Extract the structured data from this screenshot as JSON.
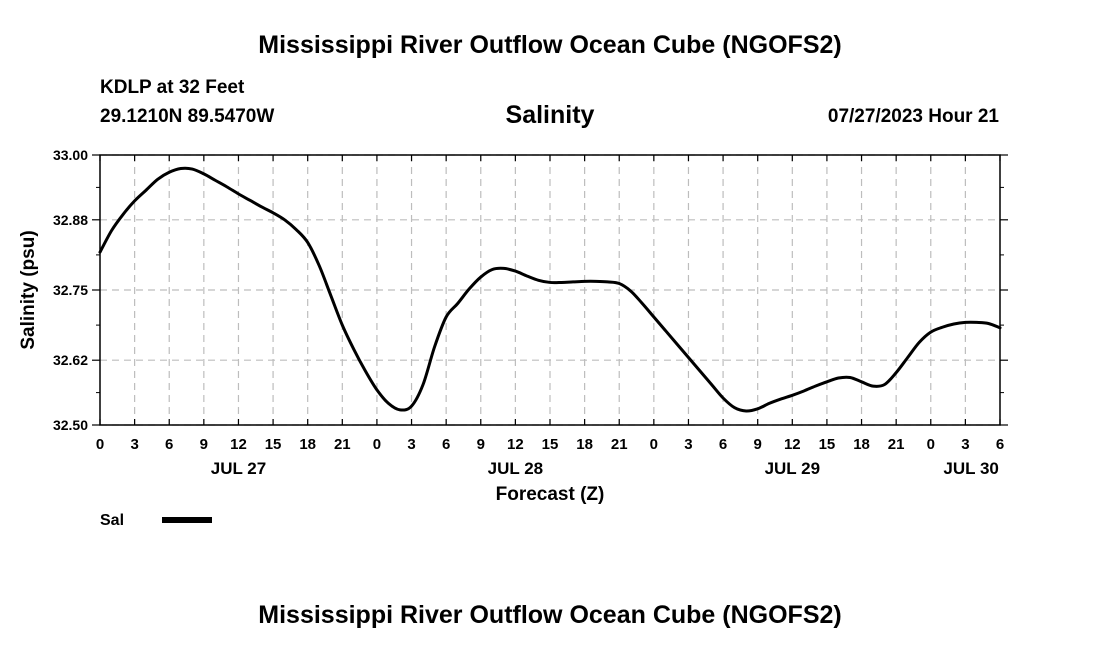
{
  "page": {
    "title_top": "Mississippi River Outflow Ocean Cube (NGOFS2)",
    "title_bottom": "Mississippi River Outflow Ocean Cube (NGOFS2)",
    "station": "KDLP at 32 Feet",
    "location": "29.1210N  89.5470W",
    "datetime": "07/27/2023 Hour 21"
  },
  "chart_data": {
    "type": "line",
    "title": "Salinity",
    "xlabel": "Forecast (Z)",
    "ylabel": "Salinity (psu)",
    "xlim": [
      0,
      78
    ],
    "ylim": [
      32.5,
      33.0
    ],
    "yticks": [
      32.5,
      32.62,
      32.75,
      32.88,
      33.0
    ],
    "ytick_labels": [
      "32.50",
      "32.62",
      "32.75",
      "32.88",
      "33.00"
    ],
    "xticks": [
      0,
      3,
      6,
      9,
      12,
      15,
      18,
      21,
      24,
      27,
      30,
      33,
      36,
      39,
      42,
      45,
      48,
      51,
      54,
      57,
      60,
      63,
      66,
      69,
      72,
      75,
      78
    ],
    "xtick_labels": [
      "0",
      "3",
      "6",
      "9",
      "12",
      "15",
      "18",
      "21",
      "0",
      "3",
      "6",
      "9",
      "12",
      "15",
      "18",
      "21",
      "0",
      "3",
      "6",
      "9",
      "12",
      "15",
      "18",
      "21",
      "0",
      "3",
      "6"
    ],
    "day_labels": [
      {
        "label": "JUL 27",
        "x": 12
      },
      {
        "label": "JUL 28",
        "x": 36
      },
      {
        "label": "JUL 29",
        "x": 60
      },
      {
        "label": "JUL 30",
        "x": 75.5
      }
    ],
    "grid": true,
    "legend": {
      "position": "bottom-left",
      "entries": [
        "Sal"
      ]
    },
    "series": [
      {
        "name": "Sal",
        "x": [
          0,
          1,
          2,
          3,
          4,
          5,
          6,
          7,
          8,
          9,
          10,
          11,
          12,
          13,
          14,
          15,
          16,
          17,
          18,
          19,
          20,
          21,
          22,
          23,
          24,
          25,
          26,
          27,
          28,
          29,
          30,
          31,
          32,
          33,
          34,
          35,
          36,
          37,
          38,
          39,
          40,
          41,
          42,
          43,
          44,
          45,
          46,
          47,
          48,
          49,
          50,
          51,
          52,
          53,
          54,
          55,
          56,
          57,
          58,
          59,
          60,
          61,
          62,
          63,
          64,
          65,
          66,
          67,
          68,
          69,
          70,
          71,
          72,
          73,
          74,
          75,
          76,
          77,
          78
        ],
        "values": [
          32.82,
          32.86,
          32.89,
          32.915,
          32.935,
          32.955,
          32.968,
          32.975,
          32.974,
          32.965,
          32.953,
          32.941,
          32.928,
          32.916,
          32.904,
          32.893,
          32.88,
          32.862,
          32.838,
          32.795,
          32.74,
          32.685,
          32.64,
          32.6,
          32.565,
          32.54,
          32.528,
          32.535,
          32.575,
          32.645,
          32.7,
          32.725,
          32.752,
          32.774,
          32.788,
          32.79,
          32.785,
          32.776,
          32.768,
          32.764,
          32.764,
          32.765,
          32.766,
          32.766,
          32.765,
          32.762,
          32.748,
          32.725,
          32.7,
          32.675,
          32.65,
          32.625,
          32.6,
          32.575,
          32.55,
          32.532,
          32.526,
          32.53,
          32.54,
          32.548,
          32.555,
          32.563,
          32.572,
          32.58,
          32.587,
          32.588,
          32.58,
          32.572,
          32.575,
          32.597,
          32.625,
          32.653,
          32.672,
          32.681,
          32.687,
          32.69,
          32.69,
          32.688,
          32.68
        ],
        "color": "#000000"
      }
    ]
  }
}
